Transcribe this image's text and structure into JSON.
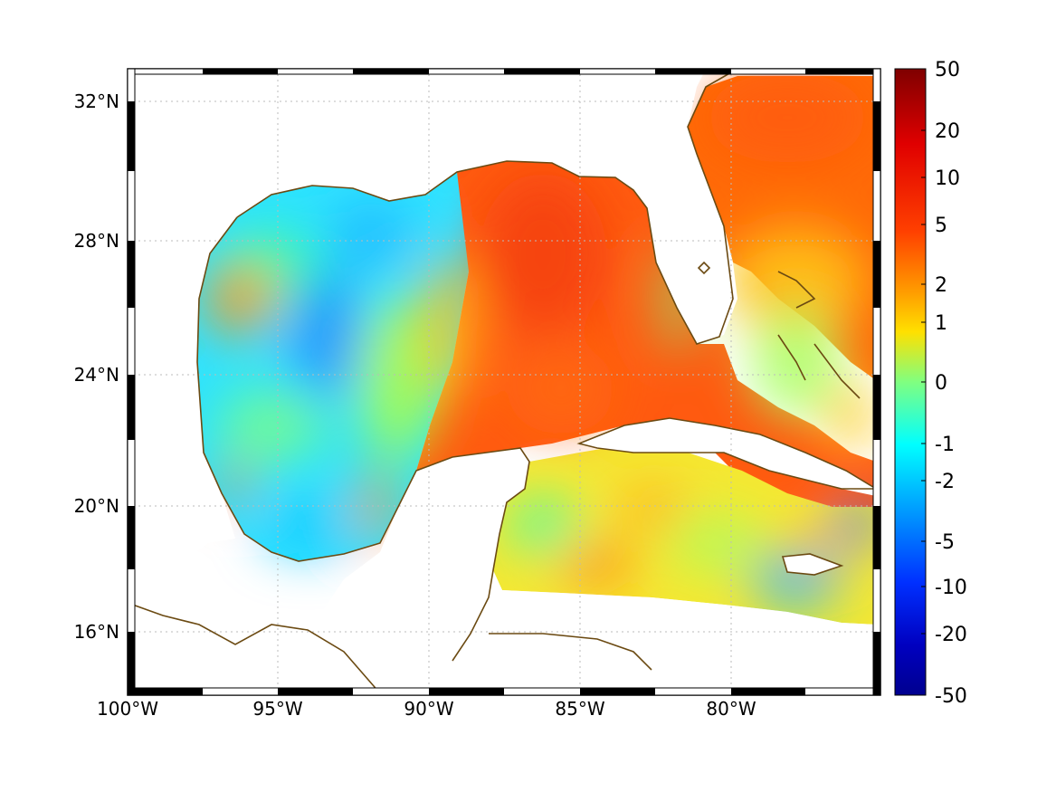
{
  "map": {
    "region": "Gulf of Mexico and western Caribbean",
    "projection": "lon-lat grid with black/white frame border",
    "lon_range": [
      -100,
      -75
    ],
    "lat_range": [
      14.5,
      33
    ],
    "x_ticks": [
      "100°W",
      "95°W",
      "90°W",
      "85°W",
      "80°W"
    ],
    "y_ticks": [
      "32°N",
      "28°N",
      "24°N",
      "20°N",
      "16°N"
    ],
    "grid": true,
    "coastline_color": "#6b4a12",
    "land_color": "#ffffff"
  },
  "colorbar": {
    "orientation": "vertical",
    "position": "right",
    "scale": "symmetric nonlinear",
    "tick_labels": [
      "50",
      "20",
      "10",
      "5",
      "2",
      "1",
      "0",
      "-1",
      "-2",
      "-5",
      "-10",
      "-20",
      "-50"
    ],
    "colors": [
      "#7f0000",
      "#ff0000",
      "#ff8000",
      "#ffff00",
      "#80ff80",
      "#00ffff",
      "#0080ff",
      "#0000ff",
      "#00008f"
    ]
  }
}
